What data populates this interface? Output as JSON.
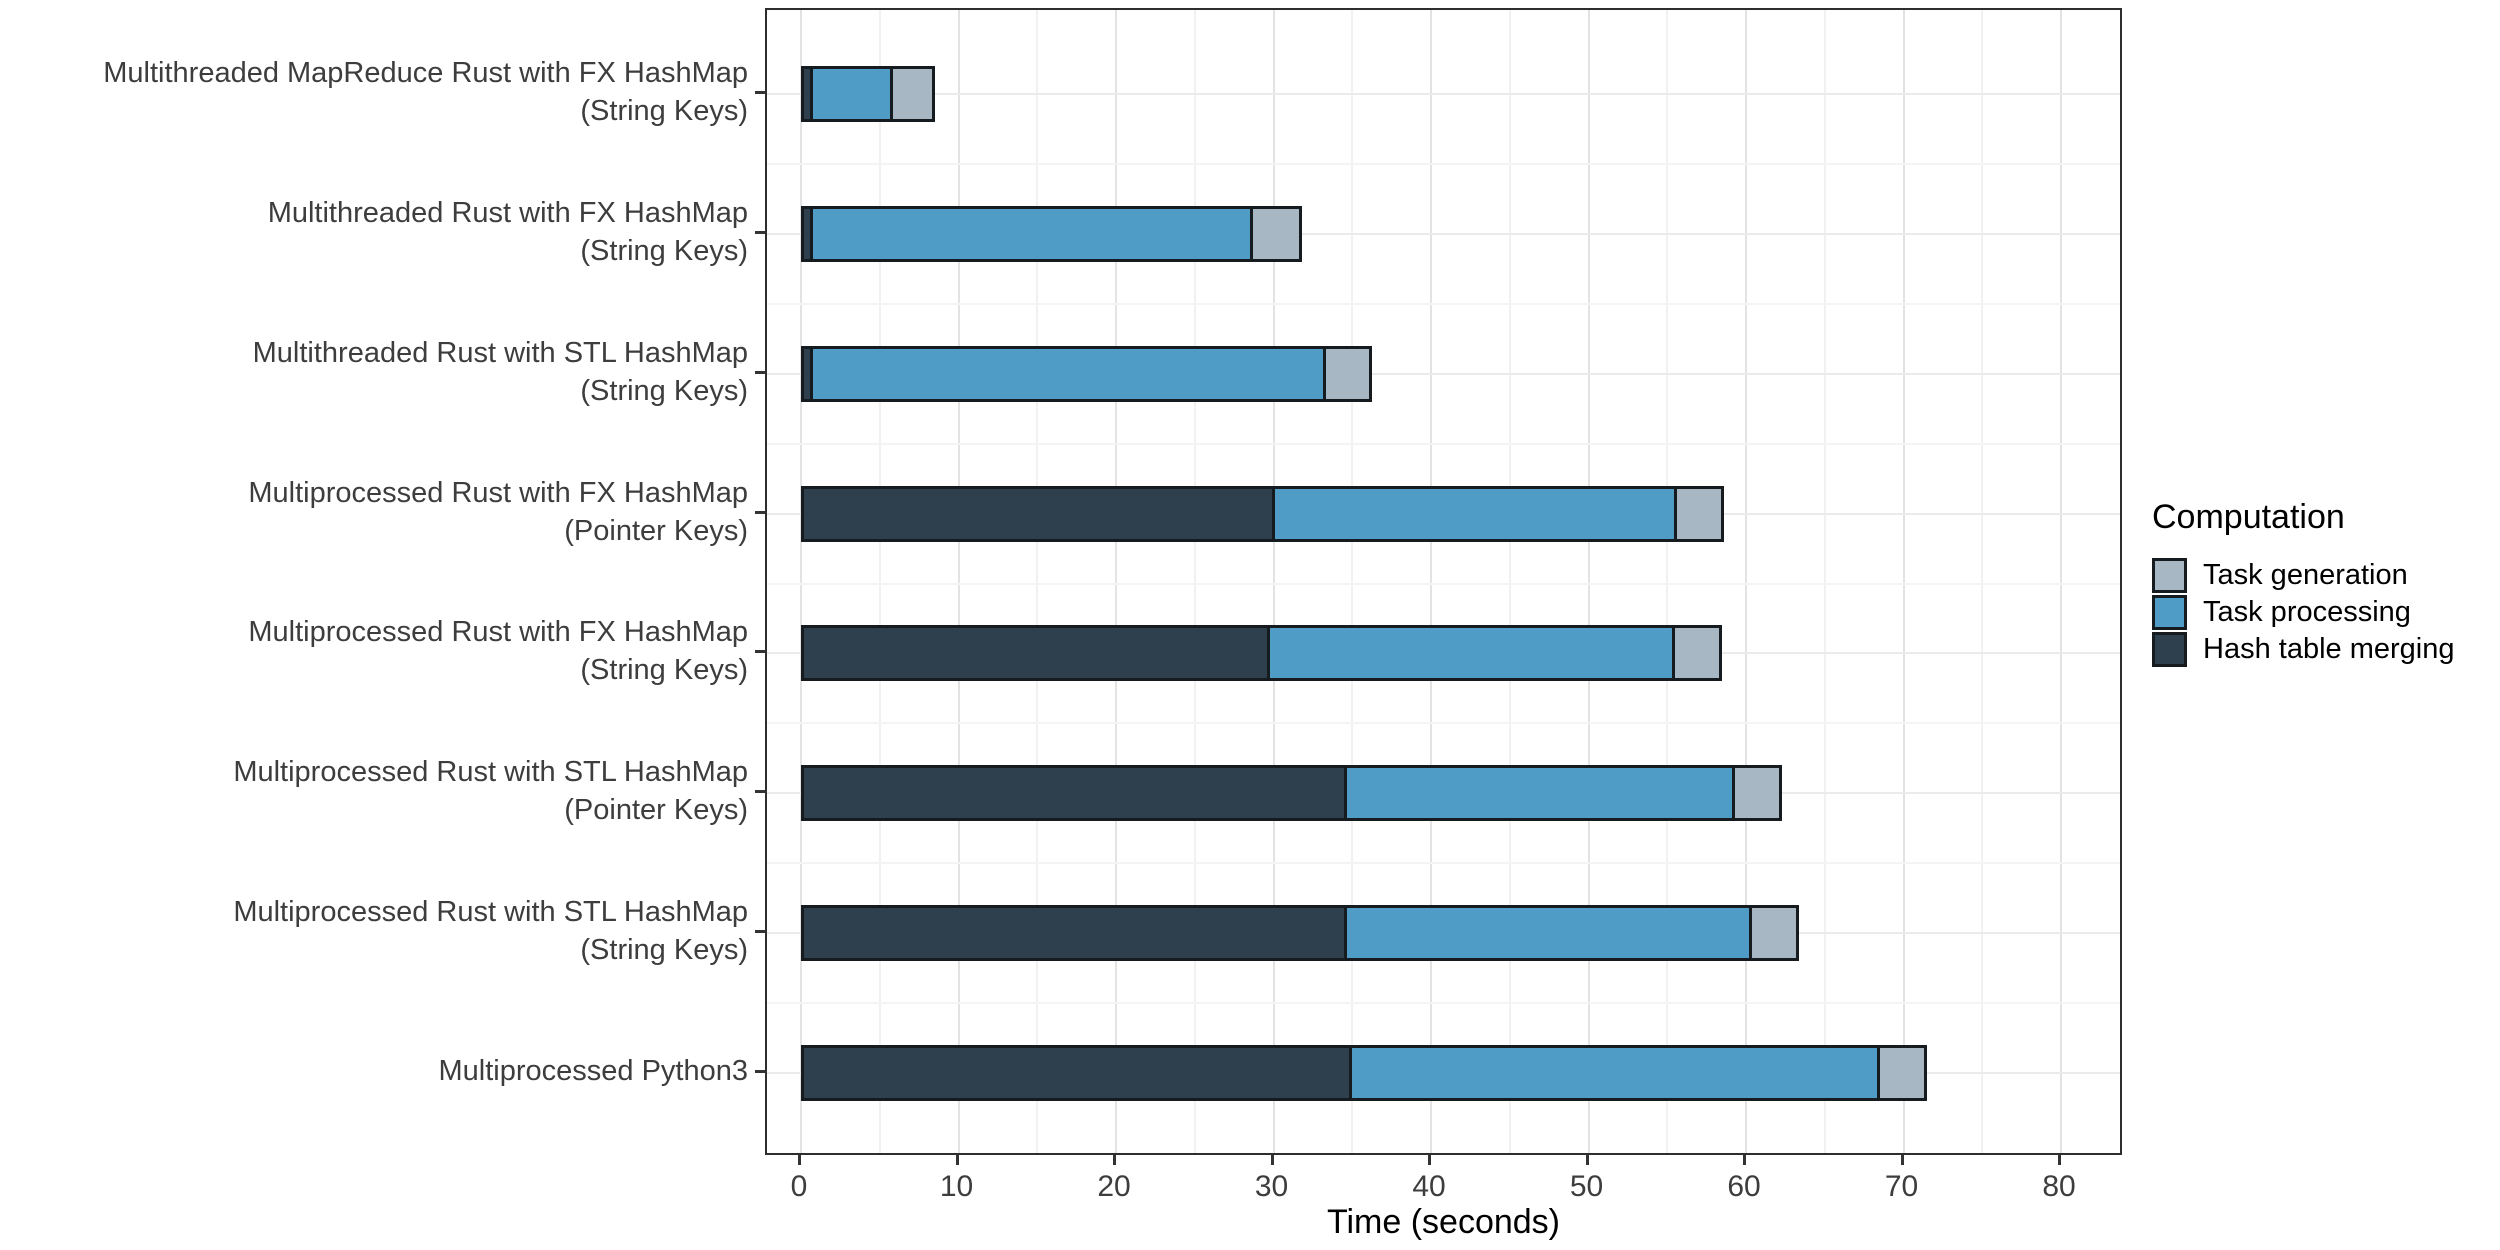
{
  "figure": {
    "x_axis_title": "Time (seconds)",
    "legend_title": "Computation"
  },
  "chart_data": {
    "type": "bar",
    "orientation": "horizontal",
    "stacked": true,
    "title": "",
    "xlabel": "Time (seconds)",
    "ylabel": "",
    "xlim": [
      0,
      84
    ],
    "x_ticks": [
      0,
      10,
      20,
      30,
      40,
      50,
      60,
      70,
      80
    ],
    "x_minor_ticks": [
      5,
      15,
      25,
      35,
      45,
      55,
      65,
      75
    ],
    "grid": true,
    "legend": {
      "title": "Computation",
      "position": "right",
      "entries": [
        "Task generation",
        "Task processing",
        "Hash table merging"
      ]
    },
    "categories": [
      [
        "Multithreaded MapReduce Rust with FX HashMap",
        "(String Keys)"
      ],
      [
        "Multithreaded Rust with FX HashMap",
        "(String Keys)"
      ],
      [
        "Multithreaded Rust with STL HashMap",
        "(String Keys)"
      ],
      [
        "Multiprocessed Rust with FX HashMap",
        "(Pointer Keys)"
      ],
      [
        "Multiprocessed Rust with FX HashMap",
        "(String Keys)"
      ],
      [
        "Multiprocessed Rust with STL HashMap",
        "(Pointer Keys)"
      ],
      [
        "Multiprocessed Rust with STL HashMap",
        "(String Keys)"
      ],
      [
        "Multiprocessed Python3"
      ]
    ],
    "stack_order_left_to_right": [
      "Hash table merging",
      "Task processing",
      "Task generation"
    ],
    "series": [
      {
        "name": "Task generation",
        "color": "#a8b7c4",
        "values": [
          2.6,
          2.9,
          2.8,
          2.8,
          2.8,
          2.8,
          2.8,
          2.8
        ]
      },
      {
        "name": "Task processing",
        "color": "#4f9dc7",
        "values": [
          5.1,
          28.1,
          32.7,
          25.5,
          25.7,
          24.6,
          25.7,
          33.5
        ]
      },
      {
        "name": "Hash table merging",
        "color": "#2e3f4d",
        "values": [
          0.4,
          0.4,
          0.4,
          29.9,
          29.6,
          34.5,
          34.5,
          34.8
        ]
      }
    ],
    "totals": [
      8.1,
      31.4,
      35.9,
      58.2,
      58.1,
      61.9,
      63.0,
      71.1
    ]
  },
  "colors": {
    "task_generation": "#a8b7c4",
    "task_processing": "#4f9dc7",
    "hash_table_merging": "#2e3f4d",
    "bar_outline": "#161b1f",
    "panel_border": "#2e2e2e",
    "grid_major": "#e3e3e3",
    "grid_minor": "#f1f1f1",
    "text_axis": "#3d3d3d",
    "text_legend": "#000000"
  }
}
